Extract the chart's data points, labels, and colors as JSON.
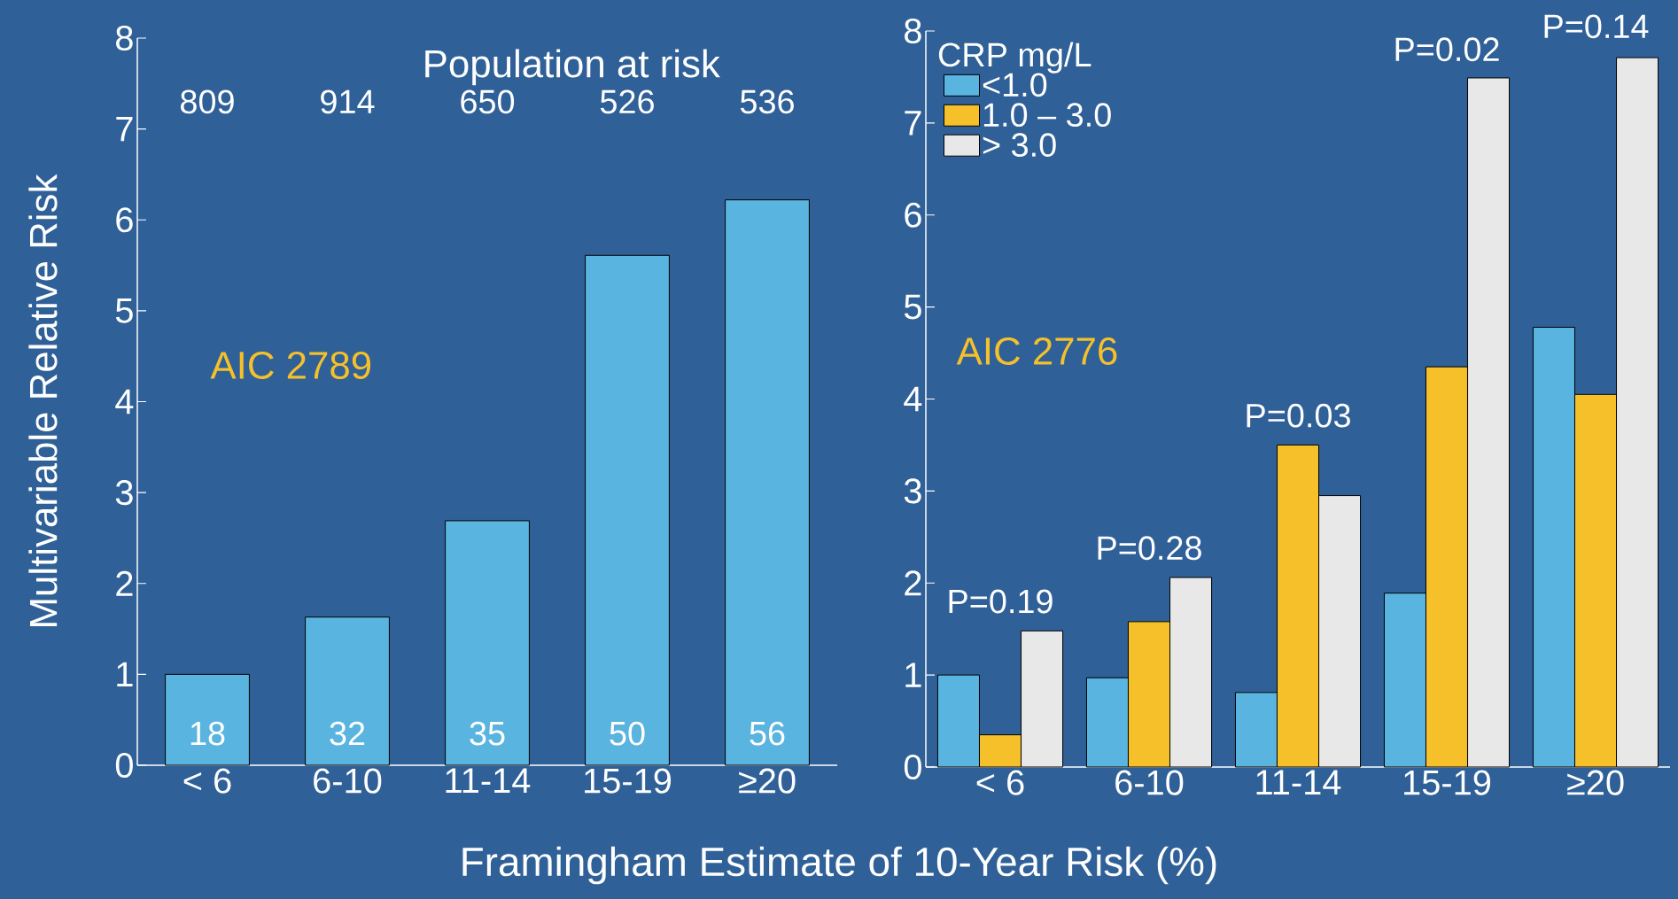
{
  "chart_data": [
    {
      "type": "bar",
      "xlabel": "Framingham Estimate of 10-Year Risk (%)",
      "ylabel": "Multivariable Relative Risk",
      "categories": [
        "< 6",
        "6-10",
        "11-14",
        "15-19",
        "≥20"
      ],
      "values": [
        1.0,
        1.63,
        2.69,
        5.61,
        6.22
      ],
      "color": "#5ab4e0",
      "ylim": [
        0,
        8
      ],
      "yticks": [
        0,
        1,
        2,
        3,
        4,
        5,
        6,
        7,
        8
      ],
      "annotations": [
        "Population at risk",
        "809",
        "914",
        "650",
        "526",
        "536",
        "18",
        "32",
        "35",
        "50",
        "56",
        "AIC  2789"
      ]
    },
    {
      "type": "bar",
      "legend_title": "CRP mg/L",
      "legend": "top left",
      "categories": [
        "< 6",
        "6-10",
        "11-14",
        "15-19",
        "≥20"
      ],
      "series": [
        {
          "name": "<1.0",
          "color": "#5ab4e0",
          "values": [
            1.0,
            0.97,
            0.81,
            1.89,
            4.78
          ]
        },
        {
          "name": "1.0 – 3.0",
          "color": "#f5c02a",
          "values": [
            0.35,
            1.58,
            3.5,
            4.35,
            4.05
          ]
        },
        {
          "name": "> 3.0",
          "color": "#e8e8e8",
          "values": [
            1.48,
            2.06,
            2.95,
            7.49,
            7.71
          ]
        }
      ],
      "ylim": [
        0,
        8
      ],
      "yticks": [
        0,
        1,
        2,
        3,
        4,
        5,
        6,
        7,
        8
      ],
      "annotations": [
        "P=0.19",
        "P=0.28",
        "P=0.03",
        "P=0.02",
        "P=0.14",
        "AIC  2776"
      ]
    }
  ]
}
